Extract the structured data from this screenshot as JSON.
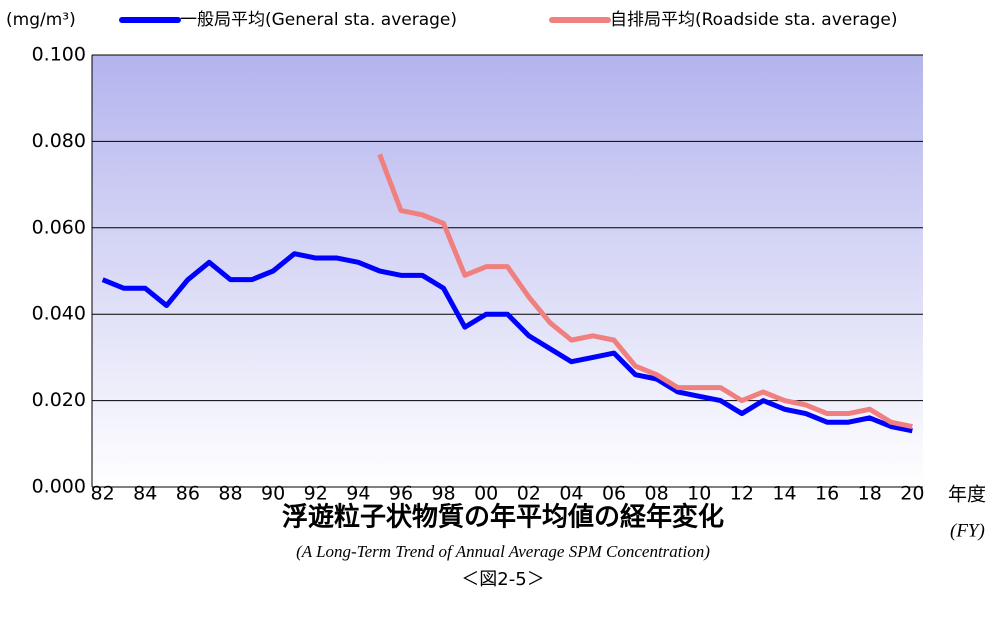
{
  "chart_data": {
    "type": "line",
    "title": "浮遊粒子状物質の年平均値の経年変化",
    "subtitle": "(A Long-Term Trend of Annual Average SPM Concentration)",
    "figure_label": "＜図2-5＞",
    "y_unit": "(mg/m³)",
    "x_label": "年度",
    "x_label_en": "(FY)",
    "categories": [
      "82",
      null,
      "84",
      null,
      "86",
      null,
      "88",
      null,
      "90",
      null,
      "92",
      null,
      "94",
      null,
      "96",
      null,
      "98",
      null,
      "00",
      null,
      "02",
      null,
      "04",
      null,
      "06",
      null,
      "08",
      null,
      "10",
      null,
      "12",
      null,
      "14",
      null,
      "16",
      null,
      "18",
      null,
      "20"
    ],
    "series": [
      {
        "name": "一般局平均(General sta. average)",
        "color": "#0000ff",
        "values": [
          0.048,
          0.046,
          0.046,
          0.042,
          0.048,
          0.052,
          0.048,
          0.048,
          0.05,
          0.054,
          0.053,
          0.053,
          0.052,
          0.05,
          0.049,
          0.049,
          0.046,
          0.037,
          0.04,
          0.04,
          0.035,
          0.032,
          0.029,
          0.03,
          0.031,
          0.026,
          0.025,
          0.022,
          0.021,
          0.02,
          0.017,
          0.02,
          0.018,
          0.017,
          0.015,
          0.015,
          0.016,
          0.014,
          0.013
        ]
      },
      {
        "name": "自排局平均(Roadside sta. average)",
        "color": "#f08080",
        "values": [
          null,
          null,
          null,
          null,
          null,
          null,
          null,
          null,
          null,
          null,
          null,
          null,
          null,
          0.077,
          0.064,
          0.063,
          0.061,
          0.049,
          0.051,
          0.051,
          0.044,
          0.038,
          0.034,
          0.035,
          0.034,
          0.028,
          0.026,
          0.023,
          0.023,
          0.023,
          0.02,
          0.022,
          0.02,
          0.019,
          0.017,
          0.017,
          0.018,
          0.015,
          0.014
        ]
      }
    ],
    "ylim": [
      0,
      0.1
    ],
    "yticks": [
      {
        "value": 0,
        "label": "0.000"
      },
      {
        "value": 0.02,
        "label": "0.020"
      },
      {
        "value": 0.04,
        "label": "0.040"
      },
      {
        "value": 0.06,
        "label": "0.060"
      },
      {
        "value": 0.08,
        "label": "0.080"
      },
      {
        "value": 0.1,
        "label": "0.100"
      }
    ],
    "grid": true
  }
}
